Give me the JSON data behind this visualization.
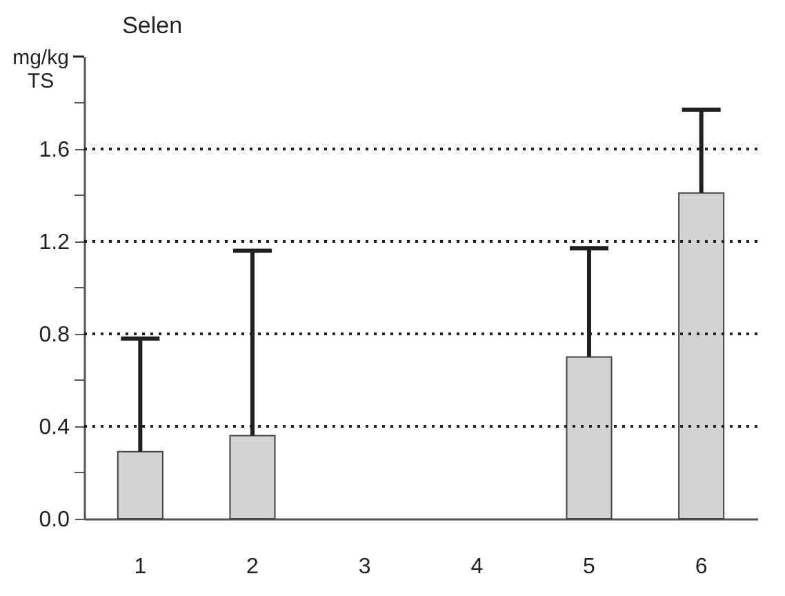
{
  "chart_data": {
    "type": "bar",
    "title": "Selen",
    "ylabel": "mg/kg TS",
    "categories": [
      "1",
      "2",
      "3",
      "4",
      "5",
      "6"
    ],
    "values": [
      0.29,
      0.36,
      null,
      null,
      0.7,
      1.41
    ],
    "errors": [
      [
        0.29,
        0.78
      ],
      [
        0.36,
        1.16
      ],
      null,
      null,
      [
        0.7,
        1.17
      ],
      [
        1.41,
        1.77
      ]
    ],
    "color": "#d1d3d4",
    "ylim": [
      0,
      2.0
    ],
    "yticks": [
      {
        "value": 0,
        "label": "0.0"
      },
      {
        "value": 0.2,
        "label": null
      },
      {
        "value": 0.4,
        "label": "0.4"
      },
      {
        "value": 0.6,
        "label": null
      },
      {
        "value": 0.8,
        "label": "0.8"
      },
      {
        "value": 1.0,
        "label": null
      },
      {
        "value": 1.2,
        "label": "1.2"
      },
      {
        "value": 1.4,
        "label": null
      },
      {
        "value": 1.6,
        "label": "1.6"
      },
      {
        "value": 1.8,
        "label": null
      }
    ],
    "grid": "y",
    "line_style": "dotted"
  }
}
